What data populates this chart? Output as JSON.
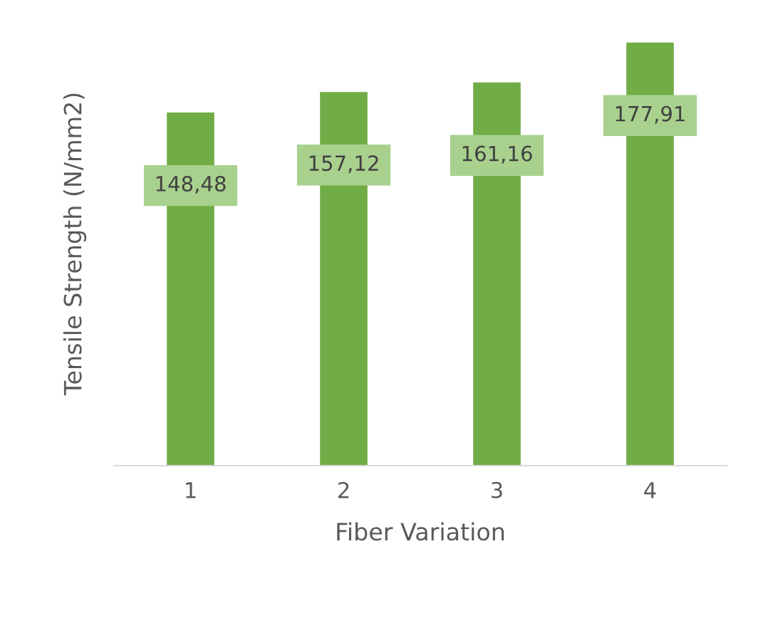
{
  "chart_data": {
    "type": "bar",
    "xlabel": "Fiber Variation",
    "ylabel": "Tensile Strength (N/mm2)",
    "categories": [
      "1",
      "2",
      "3",
      "4"
    ],
    "values": [
      148.48,
      157.12,
      161.16,
      177.91
    ],
    "value_labels": [
      "148,48",
      "157,12",
      "161,16",
      "177,91"
    ],
    "color": "#70ad47",
    "tick_labels": "x",
    "grid": false,
    "legend": false
  }
}
